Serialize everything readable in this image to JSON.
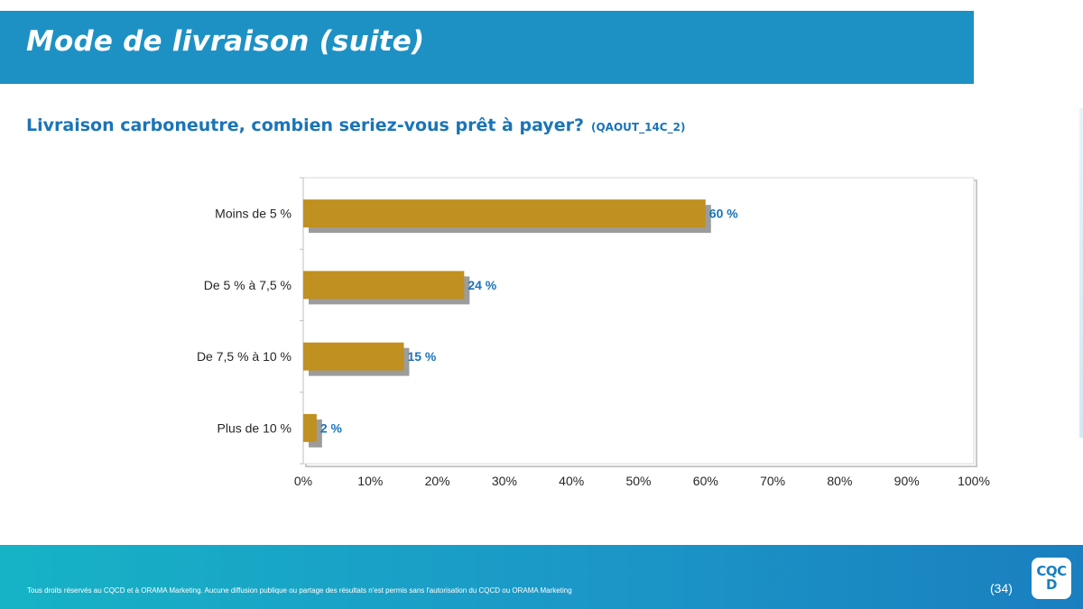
{
  "header": {
    "title": "Mode de livraison (suite)"
  },
  "question": {
    "text": "Livraison carboneutre, combien seriez-vous prêt à payer?",
    "code": "(QAOUT_14C_2)"
  },
  "chart_data": {
    "type": "bar",
    "orientation": "horizontal",
    "categories": [
      "Moins de 5 %",
      "De 5 % à 7,5 %",
      "De 7,5 % à 10 %",
      "Plus de 10 %"
    ],
    "values": [
      60,
      24,
      15,
      2
    ],
    "data_labels": [
      "60 %",
      "24 %",
      "15 %",
      "2 %"
    ],
    "x_ticks": [
      "0%",
      "10%",
      "20%",
      "30%",
      "40%",
      "50%",
      "60%",
      "70%",
      "80%",
      "90%",
      "100%"
    ],
    "xlim": [
      0,
      100
    ],
    "grid": false,
    "legend": "none",
    "bar_color": "#c09020",
    "label_color": "#1a74b8"
  },
  "footer": {
    "copyright": "Tous droits réservés au CQCD et à ORAMA Marketing. Aucune diffusion publique ou partage des résultats n'est permis sans l'autorisation du CQCD ou ORAMA Marketing",
    "page_number": "(34)",
    "logo_text": "CQCD"
  },
  "colors": {
    "header_bg": "#1e91c4",
    "title_text": "#1a74b8",
    "footer_gradient_start": "#16b3c6",
    "footer_gradient_end": "#1a7fbf"
  }
}
